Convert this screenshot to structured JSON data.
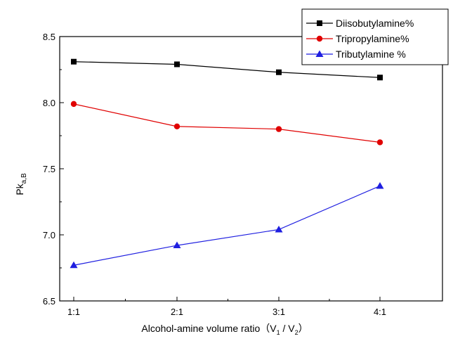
{
  "chart_data": {
    "type": "line",
    "categories": [
      "1:1",
      "2:1",
      "3:1",
      "4:1"
    ],
    "xlabel_main": "Alcohol-amine volume ratio（V",
    "xlabel_sub1": "1",
    "xlabel_mid": " / V",
    "xlabel_sub2": "2",
    "xlabel_end": "）",
    "ylabel_main": "Pk",
    "ylabel_sub": "a,B",
    "ylim": [
      6.5,
      8.5
    ],
    "yticks": [
      "6.5",
      "7.0",
      "7.5",
      "8.0",
      "8.5"
    ],
    "legend_position": "top-right",
    "series": [
      {
        "name": "Diisobutylamine%",
        "color": "#000000",
        "marker": "square",
        "values": [
          8.31,
          8.29,
          8.23,
          8.19
        ]
      },
      {
        "name": "Tripropylamine%",
        "color": "#e00000",
        "marker": "circle",
        "values": [
          7.99,
          7.82,
          7.8,
          7.7
        ]
      },
      {
        "name": "Tributylamine %",
        "color": "#1f1fe0",
        "marker": "triangle",
        "values": [
          6.77,
          6.92,
          7.04,
          7.37
        ]
      }
    ]
  }
}
